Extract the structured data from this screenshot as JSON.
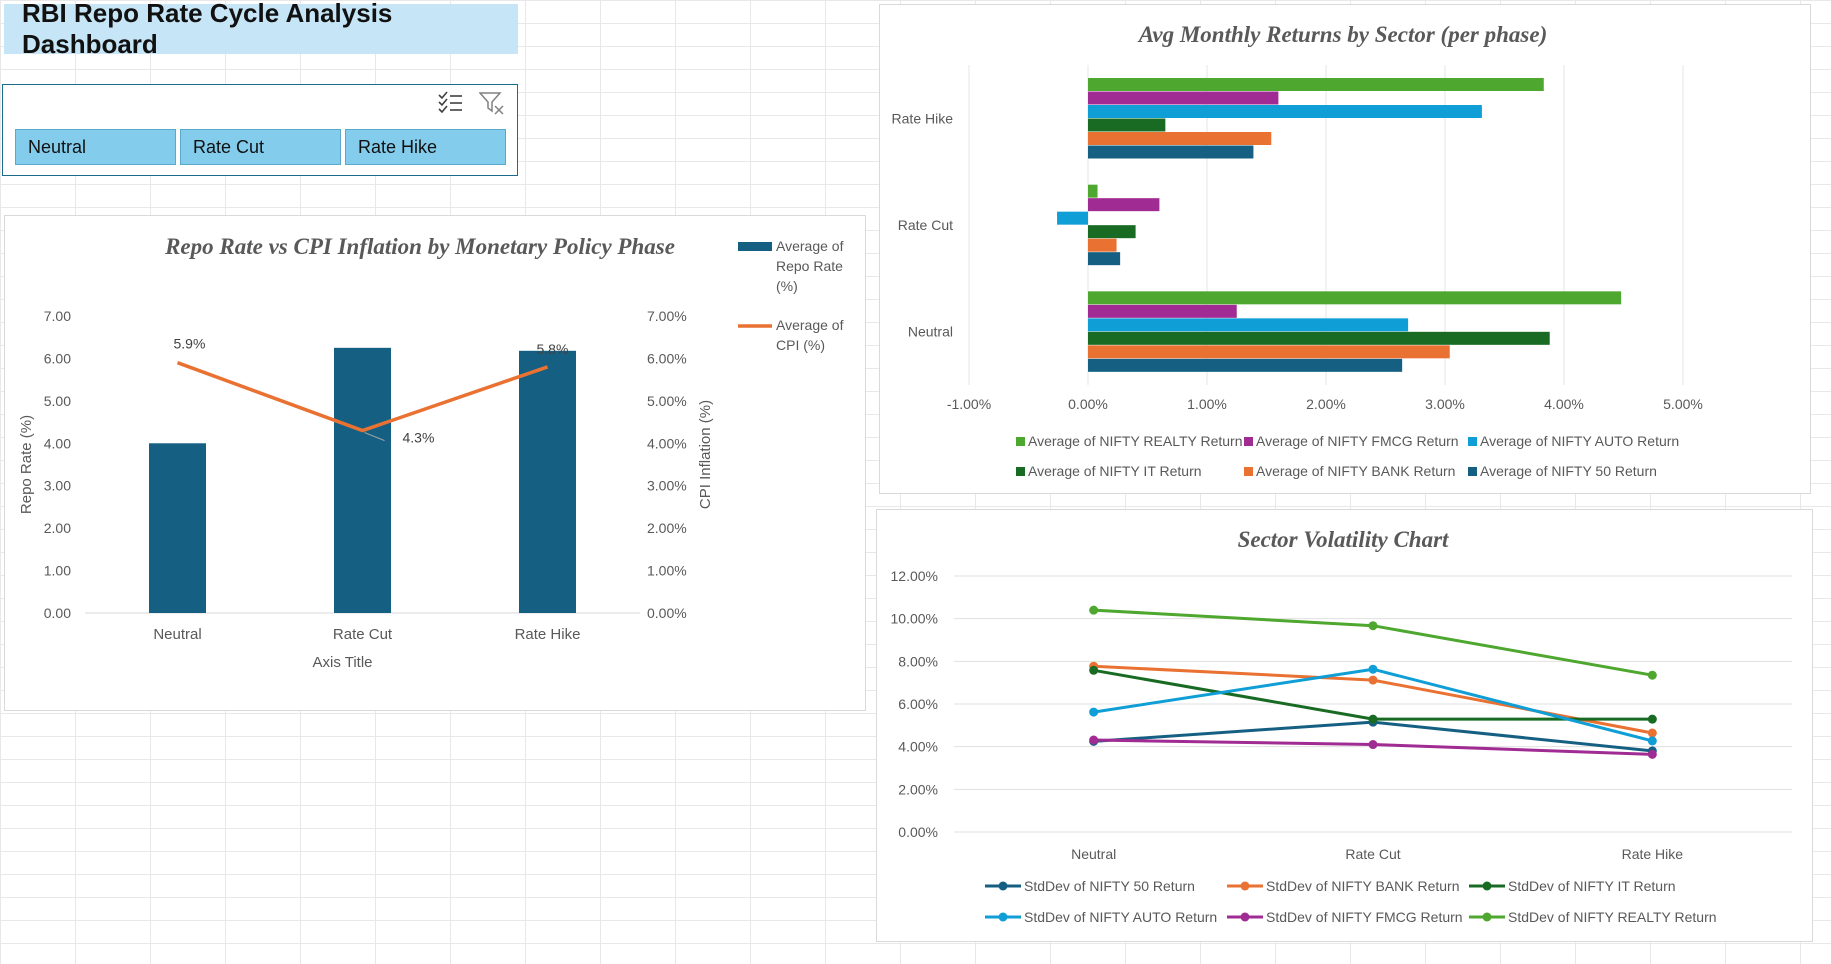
{
  "dashboard": {
    "title": "RBI Repo Rate Cycle Analysis Dashboard"
  },
  "slicer": {
    "tools": [
      "multi-select-icon",
      "clear-filter-icon"
    ],
    "items": [
      "Neutral",
      "Rate Cut",
      "Rate Hike"
    ],
    "item_color": "#83ccec"
  },
  "chart_data": [
    {
      "type": "bar",
      "title": "Repo Rate vs CPI Inflation by Monetary Policy Phase",
      "categories": [
        "Neutral",
        "Rate Cut",
        "Rate Hike"
      ],
      "xlabel": "Axis Title",
      "ylabel": "Repo Rate (%)",
      "y2label": "CPI Inflation (%)",
      "ylim": [
        0,
        7
      ],
      "y2lim": [
        0,
        0.07
      ],
      "yticks": [
        "0.00",
        "1.00",
        "2.00",
        "3.00",
        "4.00",
        "5.00",
        "6.00",
        "7.00"
      ],
      "y2ticks": [
        "0.00%",
        "1.00%",
        "2.00%",
        "3.00%",
        "4.00%",
        "5.00%",
        "6.00%",
        "7.00%"
      ],
      "legend_position": "right",
      "series": [
        {
          "name": "Average of Repo Rate (%)",
          "type": "bar",
          "axis": "primary",
          "color": "#156082",
          "values": [
            4.0,
            6.25,
            6.18
          ]
        },
        {
          "name": "Average of CPI (%)",
          "type": "line",
          "axis": "secondary",
          "color": "#e97132",
          "values": [
            0.059,
            0.043,
            0.058
          ],
          "labels": [
            "5.9%",
            "4.3%",
            "5.8%"
          ]
        }
      ]
    },
    {
      "type": "bar",
      "orientation": "horizontal",
      "title": "Avg Monthly Returns by Sector (per phase)",
      "categories": [
        "Rate Hike",
        "Rate Cut",
        "Neutral"
      ],
      "xlim": [
        -0.01,
        0.05
      ],
      "xticks": [
        "-1.00%",
        "0.00%",
        "1.00%",
        "2.00%",
        "3.00%",
        "4.00%",
        "5.00%"
      ],
      "legend_position": "bottom",
      "series": [
        {
          "name": "Average of NIFTY REALTY Return",
          "color": "#4ea72e",
          "values": [
            0.0383,
            0.0008,
            0.0448
          ]
        },
        {
          "name": "Average of NIFTY FMCG Return",
          "color": "#a02b93",
          "values": [
            0.016,
            0.006,
            0.0125
          ]
        },
        {
          "name": "Average of NIFTY AUTO Return",
          "color": "#0f9ed5",
          "values": [
            0.0331,
            -0.0026,
            0.0269
          ]
        },
        {
          "name": "Average of NIFTY IT Return",
          "color": "#196b24",
          "values": [
            0.0065,
            0.004,
            0.0388
          ]
        },
        {
          "name": "Average of NIFTY BANK Return",
          "color": "#e97132",
          "values": [
            0.0154,
            0.0024,
            0.0304
          ]
        },
        {
          "name": "Average of NIFTY 50 Return",
          "color": "#156082",
          "values": [
            0.0139,
            0.0027,
            0.0264
          ]
        }
      ]
    },
    {
      "type": "line",
      "title": "Sector Volatility Chart",
      "categories": [
        "Neutral",
        "Rate Cut",
        "Rate Hike"
      ],
      "ylim": [
        0,
        0.12
      ],
      "yticks": [
        "0.00%",
        "2.00%",
        "4.00%",
        "6.00%",
        "8.00%",
        "10.00%",
        "12.00%"
      ],
      "legend_position": "bottom",
      "series": [
        {
          "name": "StdDev of NIFTY 50 Return",
          "color": "#156082",
          "values": [
            0.0425,
            0.0515,
            0.038
          ]
        },
        {
          "name": "StdDev of NIFTY BANK Return",
          "color": "#e97132",
          "values": [
            0.0777,
            0.0712,
            0.0464
          ]
        },
        {
          "name": "StdDev of NIFTY IT Return",
          "color": "#196b24",
          "values": [
            0.0758,
            0.0529,
            0.0529
          ]
        },
        {
          "name": "StdDev of NIFTY AUTO Return",
          "color": "#0f9ed5",
          "values": [
            0.0562,
            0.0763,
            0.0427
          ]
        },
        {
          "name": "StdDev of NIFTY FMCG Return",
          "color": "#a02b93",
          "values": [
            0.0431,
            0.041,
            0.0364
          ]
        },
        {
          "name": "StdDev of NIFTY REALTY Return",
          "color": "#4ea72e",
          "values": [
            0.104,
            0.0967,
            0.0735
          ]
        }
      ]
    }
  ]
}
